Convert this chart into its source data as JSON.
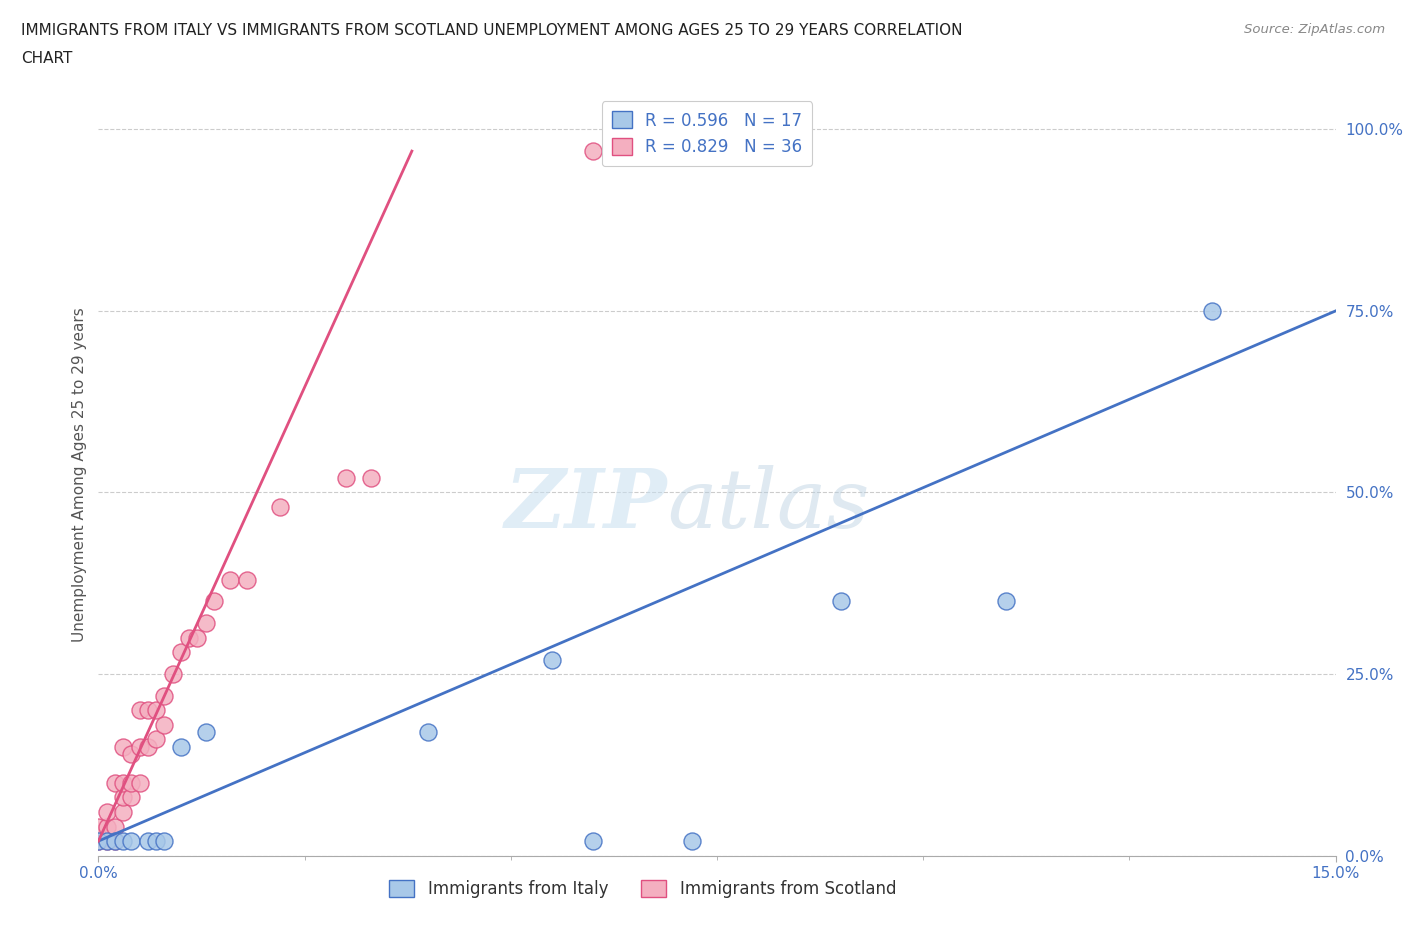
{
  "title_line1": "IMMIGRANTS FROM ITALY VS IMMIGRANTS FROM SCOTLAND UNEMPLOYMENT AMONG AGES 25 TO 29 YEARS CORRELATION",
  "title_line2": "CHART",
  "source_text": "Source: ZipAtlas.com",
  "ylabel": "Unemployment Among Ages 25 to 29 years",
  "xlim": [
    0.0,
    0.15
  ],
  "ylim": [
    0.0,
    1.05
  ],
  "yticks": [
    0.0,
    0.25,
    0.5,
    0.75,
    1.0
  ],
  "ytick_labels": [
    "0.0%",
    "25.0%",
    "50.0%",
    "75.0%",
    "100.0%"
  ],
  "xtick_labels": [
    "0.0%",
    "15.0%"
  ],
  "italy_color": "#a8c8e8",
  "scotland_color": "#f4afc0",
  "italy_line_color": "#4472c4",
  "scotland_line_color": "#e05080",
  "legend_italy_R": "0.596",
  "legend_italy_N": "17",
  "legend_scotland_R": "0.829",
  "legend_scotland_N": "36",
  "italy_points_x": [
    0.0,
    0.001,
    0.002,
    0.003,
    0.004,
    0.006,
    0.007,
    0.008,
    0.01,
    0.013,
    0.04,
    0.055,
    0.06,
    0.072,
    0.09,
    0.11,
    0.135
  ],
  "italy_points_y": [
    0.02,
    0.02,
    0.02,
    0.02,
    0.02,
    0.02,
    0.02,
    0.02,
    0.15,
    0.17,
    0.17,
    0.27,
    0.02,
    0.02,
    0.35,
    0.35,
    0.75
  ],
  "scotland_points_x": [
    0.0,
    0.0,
    0.001,
    0.001,
    0.001,
    0.002,
    0.002,
    0.002,
    0.003,
    0.003,
    0.003,
    0.003,
    0.004,
    0.004,
    0.004,
    0.005,
    0.005,
    0.005,
    0.006,
    0.006,
    0.007,
    0.007,
    0.008,
    0.008,
    0.009,
    0.01,
    0.011,
    0.012,
    0.013,
    0.014,
    0.016,
    0.018,
    0.022,
    0.03,
    0.033,
    0.06
  ],
  "scotland_points_y": [
    0.02,
    0.04,
    0.02,
    0.04,
    0.06,
    0.02,
    0.04,
    0.1,
    0.06,
    0.08,
    0.1,
    0.15,
    0.08,
    0.1,
    0.14,
    0.1,
    0.15,
    0.2,
    0.15,
    0.2,
    0.16,
    0.2,
    0.18,
    0.22,
    0.25,
    0.28,
    0.3,
    0.3,
    0.32,
    0.35,
    0.38,
    0.38,
    0.48,
    0.52,
    0.52,
    0.97
  ],
  "italy_line_x": [
    0.0,
    0.15
  ],
  "italy_line_y": [
    0.02,
    0.75
  ],
  "scotland_line_x": [
    0.0,
    0.038
  ],
  "scotland_line_y": [
    0.02,
    0.97
  ],
  "background_color": "#ffffff",
  "grid_color": "#cccccc"
}
